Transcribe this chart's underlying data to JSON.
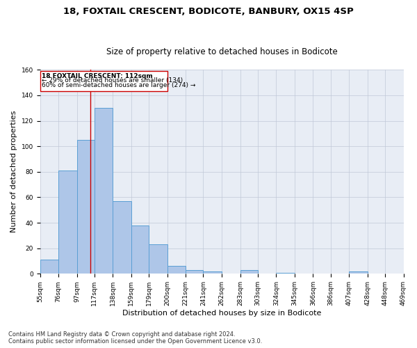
{
  "title_line1": "18, FOXTAIL CRESCENT, BODICOTE, BANBURY, OX15 4SP",
  "title_line2": "Size of property relative to detached houses in Bodicote",
  "xlabel": "Distribution of detached houses by size in Bodicote",
  "ylabel": "Number of detached properties",
  "footnote": "Contains HM Land Registry data © Crown copyright and database right 2024.\nContains public sector information licensed under the Open Government Licence v3.0.",
  "bin_edges": [
    55,
    76,
    97,
    117,
    138,
    159,
    179,
    200,
    221,
    241,
    262,
    283,
    303,
    324,
    345,
    366,
    386,
    407,
    428,
    448,
    469
  ],
  "bar_heights": [
    11,
    81,
    105,
    130,
    57,
    38,
    23,
    6,
    3,
    2,
    0,
    3,
    0,
    1,
    0,
    0,
    0,
    2,
    0,
    0
  ],
  "bar_color": "#aec6e8",
  "bar_edge_color": "#5a9fd4",
  "property_size": 112,
  "property_line_color": "#cc0000",
  "annotation_text_line1": "18 FOXTAIL CRESCENT: 112sqm",
  "annotation_text_line2": "← 29% of detached houses are smaller (134)",
  "annotation_text_line3": "60% of semi-detached houses are larger (274) →",
  "annotation_box_color": "#cc0000",
  "ylim": [
    0,
    160
  ],
  "yticks": [
    0,
    20,
    40,
    60,
    80,
    100,
    120,
    140,
    160
  ],
  "grid_color": "#c0c8d8",
  "background_color": "#e8edf5",
  "title1_fontsize": 9.5,
  "title2_fontsize": 8.5,
  "xlabel_fontsize": 8,
  "ylabel_fontsize": 8,
  "tick_fontsize": 6.5,
  "annotation_fontsize": 6.5,
  "footnote_fontsize": 6
}
